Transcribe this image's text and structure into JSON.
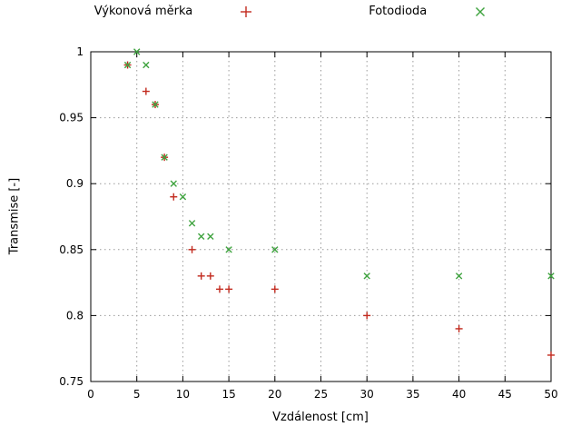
{
  "figure": {
    "background": "#ffffff",
    "grid_color": "#9a9a9a",
    "axis_color": "#000000"
  },
  "legend": {
    "position": "top-center",
    "entries": [
      {
        "label": "Výkonová měrka",
        "marker": "plus",
        "color": "#c22a1e"
      },
      {
        "label": "Fotodioda",
        "marker": "cross",
        "color": "#3fa33f"
      }
    ]
  },
  "chart_data": {
    "type": "scatter",
    "title": "",
    "xlabel": "Vzdálenost [cm]",
    "ylabel": "Transmise [-]",
    "xlim": [
      0,
      50
    ],
    "ylim": [
      0.75,
      1.0
    ],
    "xticks": [
      0,
      5,
      10,
      15,
      20,
      25,
      30,
      35,
      40,
      45,
      50
    ],
    "xtick_labels": [
      "0",
      "5",
      "10",
      "15",
      "20",
      "25",
      "30",
      "35",
      "40",
      "45",
      "50"
    ],
    "yticks": [
      0.75,
      0.8,
      0.85,
      0.9,
      0.95,
      1.0
    ],
    "ytick_labels": [
      "0.75",
      "0.8",
      "0.85",
      "0.9",
      "0.95",
      "1"
    ],
    "grid": true,
    "legend_position": "top-center",
    "series": [
      {
        "name": "Výkonová měrka",
        "marker": "plus",
        "color": "#c22a1e",
        "points": [
          [
            4,
            0.99
          ],
          [
            6,
            0.97
          ],
          [
            7,
            0.96
          ],
          [
            8,
            0.92
          ],
          [
            9,
            0.89
          ],
          [
            11,
            0.85
          ],
          [
            12,
            0.83
          ],
          [
            13,
            0.83
          ],
          [
            14,
            0.82
          ],
          [
            15,
            0.82
          ],
          [
            20,
            0.82
          ],
          [
            30,
            0.8
          ],
          [
            40,
            0.79
          ],
          [
            50,
            0.77
          ]
        ]
      },
      {
        "name": "Fotodioda",
        "marker": "cross",
        "color": "#3fa33f",
        "points": [
          [
            4,
            0.99
          ],
          [
            5,
            1.0
          ],
          [
            6,
            0.99
          ],
          [
            7,
            0.96
          ],
          [
            8,
            0.92
          ],
          [
            9,
            0.9
          ],
          [
            10,
            0.89
          ],
          [
            11,
            0.87
          ],
          [
            12,
            0.86
          ],
          [
            13,
            0.86
          ],
          [
            15,
            0.85
          ],
          [
            20,
            0.85
          ],
          [
            30,
            0.83
          ],
          [
            40,
            0.83
          ],
          [
            50,
            0.83
          ]
        ]
      }
    ]
  }
}
